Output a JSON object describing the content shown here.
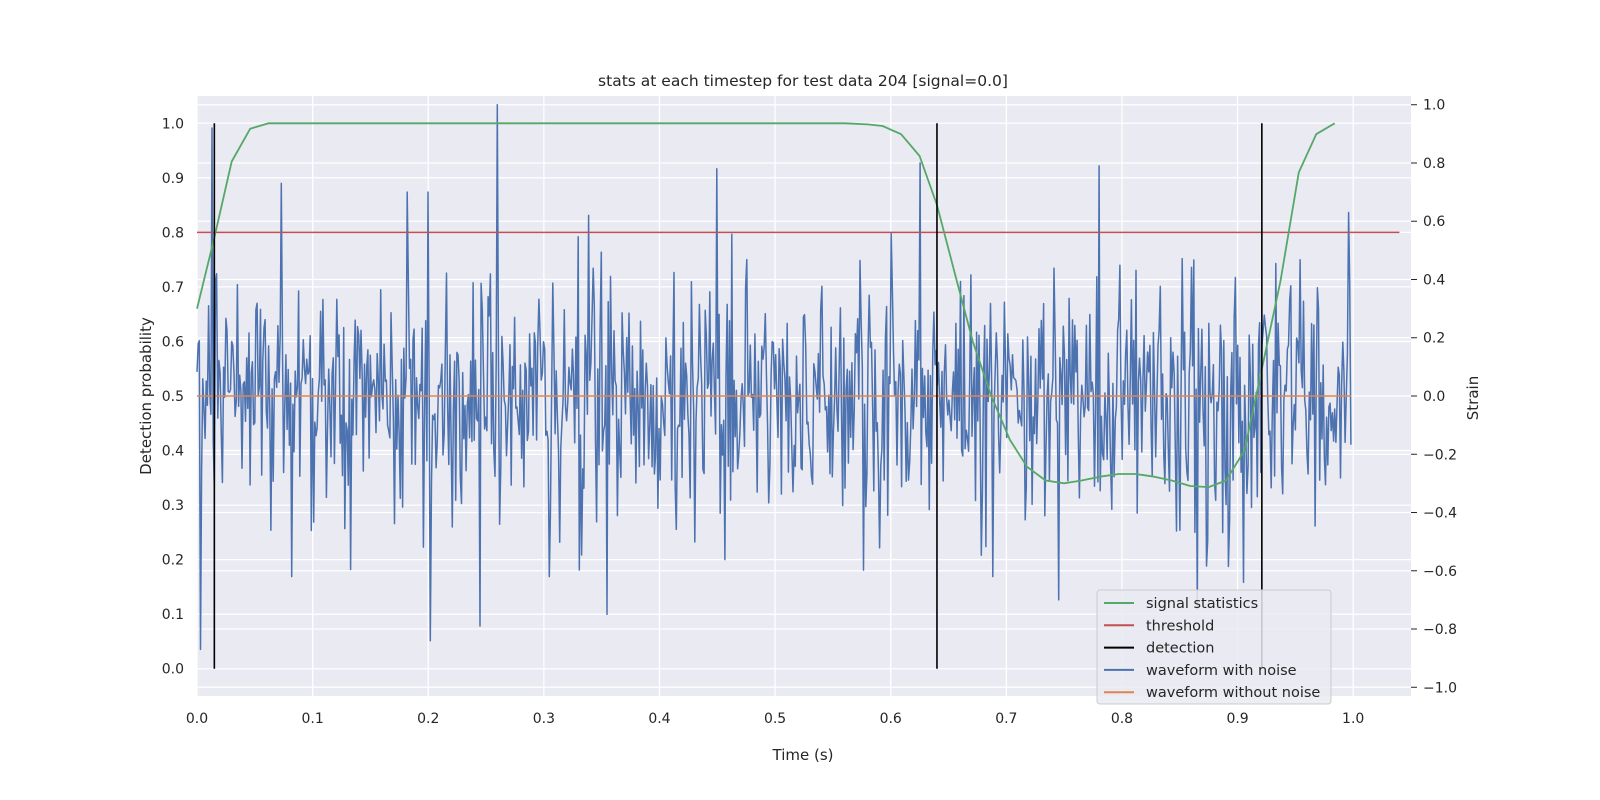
{
  "chart_data": {
    "type": "line",
    "title": "stats at each timestep for test data 204 [signal=0.0]",
    "xlabel": "Time (s)",
    "ylabel_left": "Detection probability",
    "ylabel_right": "Strain",
    "xlim": [
      0.0,
      1.05
    ],
    "ylim_left": [
      -0.05,
      1.05
    ],
    "ylim_right": [
      -1.03,
      1.03
    ],
    "x_ticks": [
      0.0,
      0.1,
      0.2,
      0.3,
      0.4,
      0.5,
      0.6,
      0.7,
      0.8,
      0.9,
      1.0
    ],
    "x_tick_labels": [
      "0.0",
      "0.1",
      "0.2",
      "0.3",
      "0.4",
      "0.5",
      "0.6",
      "0.7",
      "0.8",
      "0.9",
      "1.0"
    ],
    "y_left_ticks": [
      0.0,
      0.1,
      0.2,
      0.3,
      0.4,
      0.5,
      0.6,
      0.7,
      0.8,
      0.9,
      1.0
    ],
    "y_left_tick_labels": [
      "0.0",
      "0.1",
      "0.2",
      "0.3",
      "0.4",
      "0.5",
      "0.6",
      "0.7",
      "0.8",
      "0.9",
      "1.0"
    ],
    "y_right_ticks": [
      -1.0,
      -0.8,
      -0.6,
      -0.4,
      -0.2,
      0.0,
      0.2,
      0.4,
      0.6,
      0.8,
      1.0
    ],
    "y_right_tick_labels": [
      "−1.0",
      "−0.8",
      "−0.6",
      "−0.4",
      "−0.2",
      "0.0",
      "0.2",
      "0.4",
      "0.6",
      "0.8",
      "1.0"
    ],
    "grid": true,
    "legend_position": "lower-right",
    "legend": [
      "signal statistics",
      "threshold",
      "detection",
      "waveform with noise",
      "waveform without noise"
    ],
    "colors": {
      "signal statistics": "#55a868",
      "threshold": "#c44e52",
      "detection": "#000000",
      "waveform with noise": "#4c72b0",
      "waveform without noise": "#dd8452",
      "background": "#eaeaf2",
      "grid": "#ffffff"
    },
    "signal_statistics": {
      "x": [
        0.0,
        0.015,
        0.03,
        0.046,
        0.062,
        0.078,
        0.1,
        0.2,
        0.3,
        0.4,
        0.5,
        0.56,
        0.58,
        0.593,
        0.609,
        0.625,
        0.64,
        0.656,
        0.671,
        0.687,
        0.703,
        0.718,
        0.734,
        0.75,
        0.765,
        0.781,
        0.797,
        0.812,
        0.828,
        0.843,
        0.859,
        0.875,
        0.89,
        0.906,
        0.921,
        0.937,
        0.953,
        0.968,
        0.984
      ],
      "y": [
        0.66,
        0.79,
        0.93,
        0.99,
        1.0,
        1.0,
        1.0,
        1.0,
        1.0,
        1.0,
        1.0,
        1.0,
        0.998,
        0.995,
        0.98,
        0.94,
        0.85,
        0.72,
        0.6,
        0.5,
        0.42,
        0.37,
        0.345,
        0.34,
        0.345,
        0.352,
        0.357,
        0.357,
        0.352,
        0.345,
        0.335,
        0.333,
        0.345,
        0.4,
        0.55,
        0.71,
        0.91,
        0.98,
        1.0
      ]
    },
    "threshold": {
      "y": 0.8,
      "x_range": [
        0.0,
        1.04
      ]
    },
    "detections": {
      "x": [
        0.015,
        0.64,
        0.921
      ],
      "y_range": [
        0.0,
        1.0
      ]
    },
    "waveform_with_noise": {
      "axis": "right",
      "x_range": [
        0.0,
        0.998
      ],
      "n_points": 1000,
      "peaks": [
        {
          "x": 0.013,
          "y": 0.92
        },
        {
          "x": 0.26,
          "y": 1.0
        },
        {
          "x": 0.073,
          "y": 0.73
        },
        {
          "x": 0.182,
          "y": 0.7
        },
        {
          "x": 0.2,
          "y": 0.7
        },
        {
          "x": 0.45,
          "y": 0.78
        },
        {
          "x": 0.625,
          "y": 0.8
        },
        {
          "x": 0.78,
          "y": 0.79
        },
        {
          "x": 0.996,
          "y": 0.63
        },
        {
          "x": 0.003,
          "y": -0.87
        },
        {
          "x": 0.202,
          "y": -0.84
        },
        {
          "x": 0.245,
          "y": -0.79
        },
        {
          "x": 0.355,
          "y": -0.75
        },
        {
          "x": 0.745,
          "y": -0.7
        },
        {
          "x": 0.865,
          "y": -0.73
        },
        {
          "x": 0.905,
          "y": -0.64
        }
      ]
    },
    "waveform_without_noise": {
      "axis": "right",
      "y": 0.0,
      "x_range": [
        0.0,
        0.998
      ]
    }
  }
}
